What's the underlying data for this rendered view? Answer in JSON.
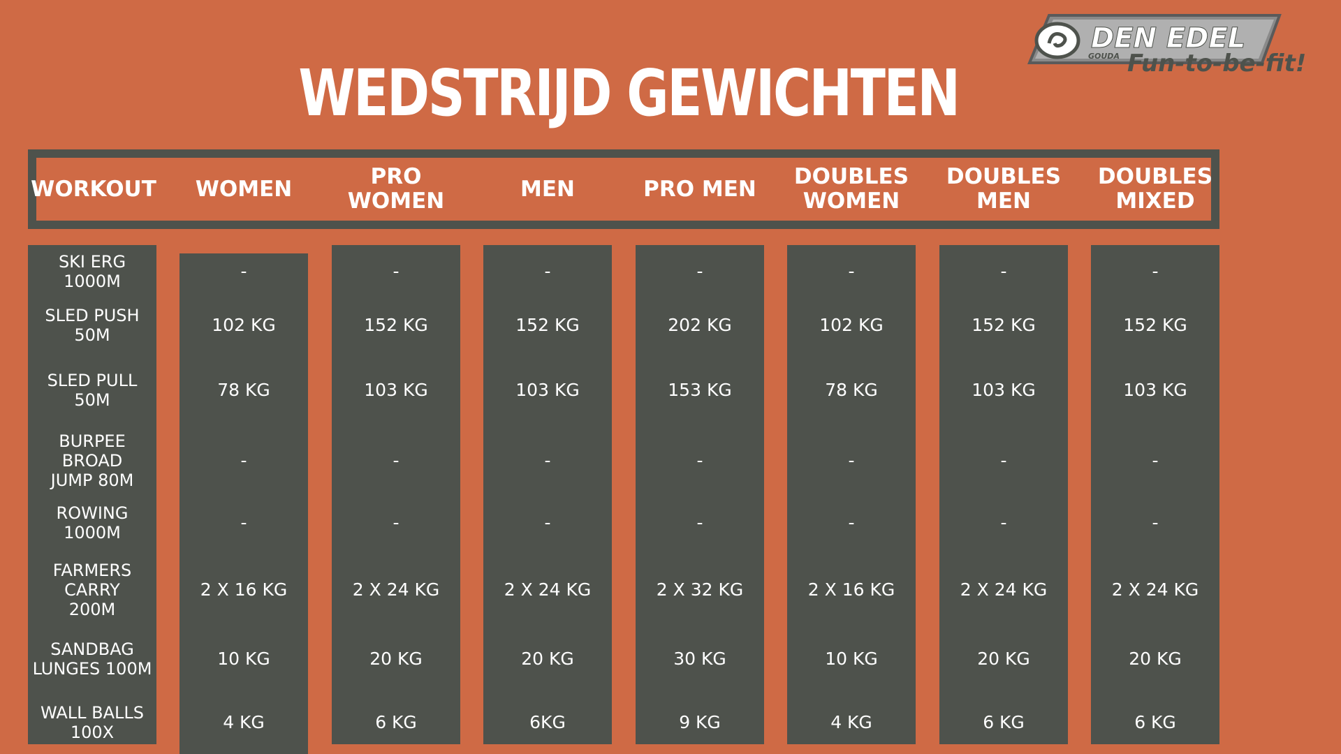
{
  "title": "WEDSTRIJD GEWICHTEN",
  "logo": {
    "brand": "DEN EDEL",
    "location": "GOUDA",
    "tagline": "Fun-to-be-fit!"
  },
  "colors": {
    "background": "#cf6a45",
    "panel": "#4e524c",
    "text": "#ffffff"
  },
  "headers": [
    "WORKOUT",
    "WOMEN",
    "PRO\nWOMEN",
    "MEN",
    "PRO MEN",
    "DOUBLES\nWOMEN",
    "DOUBLES\nMEN",
    "DOUBLES\nMIXED"
  ],
  "workouts": [
    "SKI ERG\n1000M",
    "SLED PUSH\n50M",
    "SLED PULL\n50M",
    "BURPEE BROAD\nJUMP 80M",
    "ROWING\n1000M",
    "FARMERS CARRY\n200M",
    "SANDBAG\nLUNGES 100M",
    "WALL BALLS\n100X"
  ],
  "columns": [
    [
      "-",
      "102 KG",
      "78 KG",
      "-",
      "-",
      "2 X 16 KG",
      "10 KG",
      "4 KG"
    ],
    [
      "-",
      "152 KG",
      "103 KG",
      "-",
      "-",
      "2 X 24 KG",
      "20 KG",
      "6 KG"
    ],
    [
      "-",
      "152 KG",
      "103 KG",
      "-",
      "-",
      "2 X 24 KG",
      "20 KG",
      "6KG"
    ],
    [
      "-",
      "202 KG",
      "153 KG",
      "-",
      "-",
      "2 X 32 KG",
      "30 KG",
      "9 KG"
    ],
    [
      "-",
      "102 KG",
      "78 KG",
      "-",
      "-",
      "2 X 16 KG",
      "10 KG",
      "4 KG"
    ],
    [
      "-",
      "152 KG",
      "103 KG",
      "-",
      "-",
      "2 X 24 KG",
      "20 KG",
      "6 KG"
    ],
    [
      "-",
      "152 KG",
      "103 KG",
      "-",
      "-",
      "2 X 24 KG",
      "20 KG",
      "6 KG"
    ]
  ]
}
